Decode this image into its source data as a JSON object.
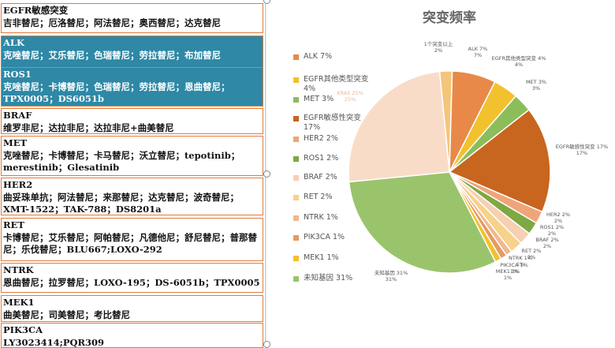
{
  "table": [
    {
      "title": "EGFR敏感突变",
      "drugs": "吉非替尼；厄洛替尼；阿法替尼；奥西替尼；达克替尼",
      "selected": false
    },
    {
      "title": "ALK",
      "drugs": "克唑替尼；艾乐替尼；色瑞替尼；劳拉替尼；布加替尼",
      "selected": true
    },
    {
      "title": "ROS1",
      "drugs": "克唑替尼；卡博替尼；色瑞替尼；劳拉替尼；恩曲替尼；TPX0005；DS6051b",
      "selected": true
    },
    {
      "title": "BRAF",
      "drugs": "维罗非尼；达拉非尼；达拉非尼+曲美替尼",
      "selected": false
    },
    {
      "title": "MET",
      "drugs": "克唑替尼；卡博替尼；卡马替尼；沃立替尼；tepotinib；merestinib；Glesatinib",
      "selected": false
    },
    {
      "title": "HER2",
      "drugs": "曲妥珠单抗；阿法替尼；来那替尼；达克替尼；波奇替尼；XMT-1522；TAK-788；DS8201a",
      "selected": false
    },
    {
      "title": "RET",
      "drugs": "卡博替尼；艾乐替尼；阿帕替尼；凡德他尼；舒尼替尼；普那替尼；乐伐替尼；BLU667;LOXO-292",
      "selected": false
    },
    {
      "title": "NTRK",
      "drugs": "恩曲替尼；拉罗替尼；LOXO-195；DS-6051b；TPX0005",
      "selected": false
    },
    {
      "title": "MEK1",
      "drugs": "曲美替尼；司美替尼；考比替尼",
      "selected": false
    },
    {
      "title": "PIK3CA",
      "drugs": "LY3023414;PQR309",
      "selected": false
    }
  ],
  "chart_data": {
    "type": "pie",
    "title": "突变频率",
    "legend_position": "left",
    "slices": [
      {
        "name": "1个突变以上",
        "value": 2,
        "label": "1个突变以上 2%",
        "legend": null,
        "color": "#f5c57a"
      },
      {
        "name": "ALK",
        "value": 7,
        "label": "ALK 7% 7%",
        "legend": "ALK 7%",
        "color": "#e8894a"
      },
      {
        "name": "EGFR其他类型突变",
        "value": 4,
        "label": "EGFR其他类型突变 4% 4%",
        "legend": "EGFR其他类型突变 4%",
        "color": "#f2c12e"
      },
      {
        "name": "MET",
        "value": 3,
        "label": "MET 3% 3%",
        "legend": "MET 3%",
        "color": "#8cbd5a"
      },
      {
        "name": "EGFR敏感性突变",
        "value": 17,
        "label": "EGFR敏感性突变 17% 17%",
        "legend": "EGFR敏感性突变 17%",
        "color": "#c8651f"
      },
      {
        "name": "HER2",
        "value": 2,
        "label": "HER2 2% 2%",
        "legend": "HER2 2%",
        "color": "#eea57a"
      },
      {
        "name": "ROS1",
        "value": 2,
        "label": "ROS1 2% 2%",
        "legend": "ROS1 2%",
        "color": "#7fa843"
      },
      {
        "name": "BRAF",
        "value": 2,
        "label": "BRAF 2% 2%",
        "legend": "BRAF 2%",
        "color": "#f7cfb2"
      },
      {
        "name": "RET",
        "value": 2,
        "label": "RET 2% 2%",
        "legend": "RET 2%",
        "color": "#f6d28a"
      },
      {
        "name": "NTRK",
        "value": 1,
        "label": "NTRK 1% 1%",
        "legend": "NTRK 1%",
        "color": "#f0b890"
      },
      {
        "name": "PIK3CA",
        "value": 1,
        "label": "PIK3CA 1% 1%",
        "legend": "PIK3CA 1%",
        "color": "#e59a60"
      },
      {
        "name": "MEK1",
        "value": 1,
        "label": "MEK1 1% 1%",
        "legend": "MEK1 1%",
        "color": "#f2c12e"
      },
      {
        "name": "未知基因",
        "value": 31,
        "label": "未知基因 31% 31%",
        "legend": "未知基因 31%",
        "color": "#9ac46c"
      },
      {
        "name": "KRAS",
        "value": 25,
        "label": "KRAS 25% 25%",
        "legend": null,
        "color": "#f9dcc8"
      }
    ]
  }
}
